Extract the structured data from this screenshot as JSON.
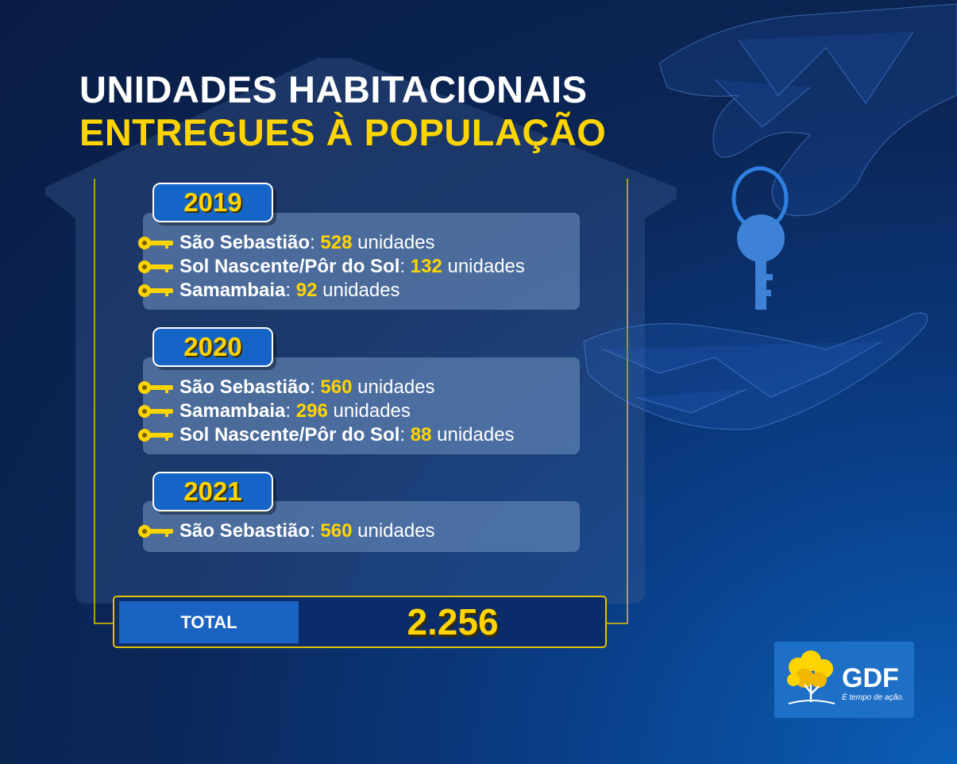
{
  "title": {
    "line1_regular": "UNIDADES",
    "line1_bold": "HABITACIONAIS",
    "line2_bold": "ENTREGUES",
    "line2_regular": "À POPULAÇÃO"
  },
  "sections": [
    {
      "year": "2019",
      "items": [
        {
          "place": "São Sebastião",
          "count": "528",
          "unit": "unidades"
        },
        {
          "place": "Sol Nascente/Pôr do Sol",
          "count": "132",
          "unit": "unidades"
        },
        {
          "place": "Samambaia",
          "count": "92",
          "unit": "unidades"
        }
      ]
    },
    {
      "year": "2020",
      "items": [
        {
          "place": "São Sebastião",
          "count": "560",
          "unit": "unidades"
        },
        {
          "place": "Samambaia",
          "count": "296",
          "unit": "unidades"
        },
        {
          "place": "Sol Nascente/Pôr do Sol",
          "count": "88",
          "unit": "unidades"
        }
      ]
    },
    {
      "year": "2021",
      "items": [
        {
          "place": "São Sebastião",
          "count": "560",
          "unit": "unidades"
        }
      ]
    }
  ],
  "total": {
    "label": "TOTAL",
    "value": "2.256"
  },
  "logo": {
    "name": "GDF",
    "slogan": "É tempo de ação."
  },
  "colors": {
    "accent": "#ffd400",
    "background": "#0b2657",
    "badge": "#1565c8"
  },
  "icons": [
    "key-icon",
    "house-outline",
    "hand-with-key-illustration",
    "open-hand-illustration",
    "ipe-tree-logo-icon"
  ]
}
